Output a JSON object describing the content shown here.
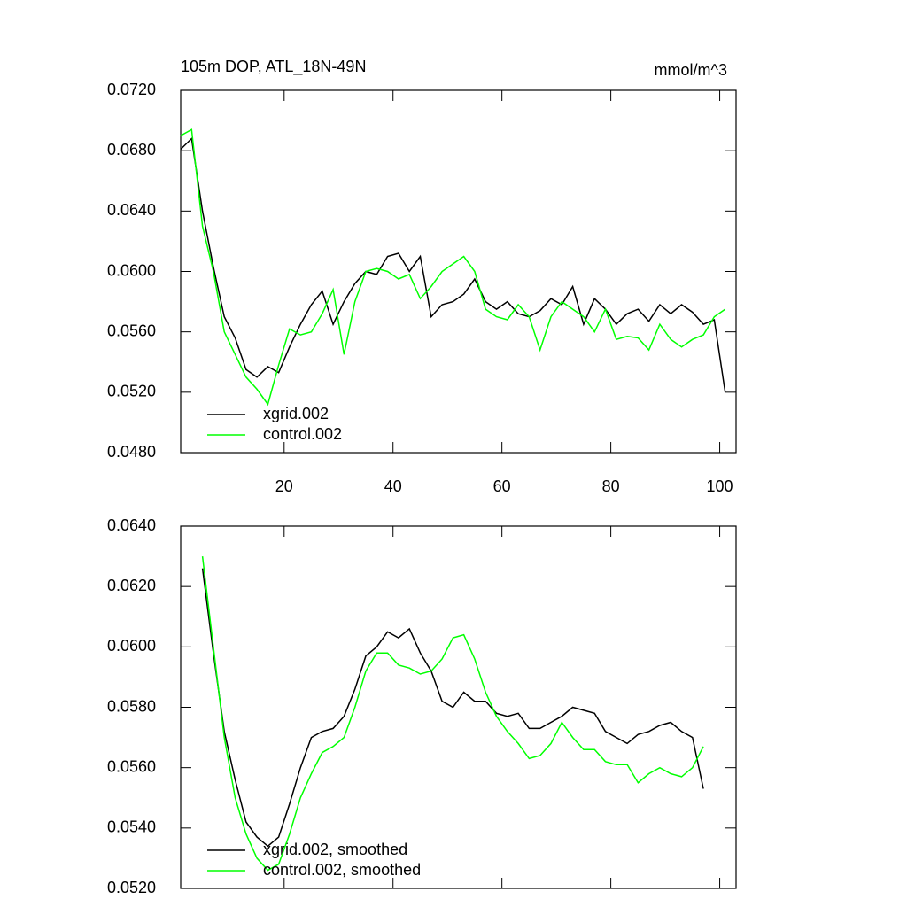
{
  "chart_data": [
    {
      "type": "line",
      "title": "105m DOP, ATL_18N-49N",
      "units_label": "mmol/m^3",
      "x": [
        1,
        3,
        5,
        7,
        9,
        11,
        13,
        15,
        17,
        19,
        21,
        23,
        25,
        27,
        29,
        31,
        33,
        35,
        37,
        39,
        41,
        43,
        45,
        47,
        49,
        51,
        53,
        55,
        57,
        59,
        61,
        63,
        65,
        67,
        69,
        71,
        73,
        75,
        77,
        79,
        81,
        83,
        85,
        87,
        89,
        91,
        93,
        95,
        97,
        99,
        101
      ],
      "series": [
        {
          "name": "xgrid.002",
          "color": "#000000",
          "values": [
            0.0681,
            0.0688,
            0.064,
            0.0603,
            0.057,
            0.0556,
            0.0535,
            0.053,
            0.0537,
            0.0533,
            0.055,
            0.0565,
            0.0578,
            0.0587,
            0.0565,
            0.058,
            0.0592,
            0.06,
            0.0598,
            0.061,
            0.0612,
            0.06,
            0.061,
            0.057,
            0.0578,
            0.058,
            0.0585,
            0.0595,
            0.058,
            0.0575,
            0.058,
            0.0572,
            0.057,
            0.0574,
            0.0582,
            0.0578,
            0.059,
            0.0565,
            0.0582,
            0.0575,
            0.0565,
            0.0572,
            0.0575,
            0.0567,
            0.0578,
            0.0572,
            0.0578,
            0.0573,
            0.0565,
            0.0568,
            0.052
          ]
        },
        {
          "name": "control.002",
          "color": "#00ff00",
          "values": [
            0.069,
            0.0694,
            0.063,
            0.06,
            0.056,
            0.0545,
            0.053,
            0.0522,
            0.0512,
            0.0538,
            0.0562,
            0.0558,
            0.056,
            0.0572,
            0.0588,
            0.0545,
            0.058,
            0.06,
            0.0602,
            0.06,
            0.0595,
            0.0598,
            0.0582,
            0.059,
            0.06,
            0.0605,
            0.061,
            0.06,
            0.0575,
            0.057,
            0.0568,
            0.0578,
            0.057,
            0.0548,
            0.057,
            0.058,
            0.0575,
            0.057,
            0.056,
            0.0575,
            0.0555,
            0.0557,
            0.0556,
            0.0548,
            0.0565,
            0.0555,
            0.055,
            0.0555,
            0.0558,
            0.057,
            0.0575
          ]
        }
      ],
      "xlim": [
        1,
        103
      ],
      "xticks": [
        20,
        40,
        60,
        80,
        100
      ],
      "ylim": [
        0.048,
        0.072
      ],
      "yticks": [
        {
          "value": 0.048,
          "label": "0.0480"
        },
        {
          "value": 0.052,
          "label": "0.0520"
        },
        {
          "value": 0.056,
          "label": "0.0560"
        },
        {
          "value": 0.06,
          "label": "0.0600"
        },
        {
          "value": 0.064,
          "label": "0.0640"
        },
        {
          "value": 0.068,
          "label": "0.0680"
        },
        {
          "value": 0.072,
          "label": "0.0720"
        }
      ],
      "legend": "lower left"
    },
    {
      "type": "line",
      "x": [
        5,
        7,
        9,
        11,
        13,
        15,
        17,
        19,
        21,
        23,
        25,
        27,
        29,
        31,
        33,
        35,
        37,
        39,
        41,
        43,
        45,
        47,
        49,
        51,
        53,
        55,
        57,
        59,
        61,
        63,
        65,
        67,
        69,
        71,
        73,
        75,
        77,
        79,
        81,
        83,
        85,
        87,
        89,
        91,
        93,
        95,
        97
      ],
      "series": [
        {
          "name": "xgrid.002, smoothed",
          "color": "#000000",
          "values": [
            0.0626,
            0.0598,
            0.0572,
            0.0556,
            0.0542,
            0.0537,
            0.0534,
            0.0537,
            0.0548,
            0.056,
            0.057,
            0.0572,
            0.0573,
            0.0577,
            0.0586,
            0.0597,
            0.06,
            0.0605,
            0.0603,
            0.0606,
            0.0598,
            0.0592,
            0.0582,
            0.058,
            0.0585,
            0.0582,
            0.0582,
            0.0578,
            0.0577,
            0.0578,
            0.0573,
            0.0573,
            0.0575,
            0.0577,
            0.058,
            0.0579,
            0.0578,
            0.0572,
            0.057,
            0.0568,
            0.0571,
            0.0572,
            0.0574,
            0.0575,
            0.0572,
            0.057,
            0.0553
          ]
        },
        {
          "name": "control.002, smoothed",
          "color": "#00ff00",
          "values": [
            0.063,
            0.06,
            0.057,
            0.055,
            0.0538,
            0.053,
            0.0526,
            0.0528,
            0.0538,
            0.055,
            0.0558,
            0.0565,
            0.0567,
            0.057,
            0.058,
            0.0592,
            0.0598,
            0.0598,
            0.0594,
            0.0593,
            0.0591,
            0.0592,
            0.0596,
            0.0603,
            0.0604,
            0.0596,
            0.0585,
            0.0577,
            0.0572,
            0.0568,
            0.0563,
            0.0564,
            0.0568,
            0.0575,
            0.057,
            0.0566,
            0.0566,
            0.0562,
            0.0561,
            0.0561,
            0.0555,
            0.0558,
            0.056,
            0.0558,
            0.0557,
            0.056,
            0.0567
          ]
        }
      ],
      "xlim": [
        1,
        103
      ],
      "xticks": [
        20,
        40,
        60,
        80,
        100
      ],
      "ylim": [
        0.052,
        0.064
      ],
      "yticks": [
        {
          "value": 0.052,
          "label": "0.0520"
        },
        {
          "value": 0.054,
          "label": "0.0540"
        },
        {
          "value": 0.056,
          "label": "0.0560"
        },
        {
          "value": 0.058,
          "label": "0.0580"
        },
        {
          "value": 0.06,
          "label": "0.0600"
        },
        {
          "value": 0.062,
          "label": "0.0620"
        },
        {
          "value": 0.064,
          "label": "0.0640"
        }
      ],
      "legend": "lower left"
    }
  ]
}
